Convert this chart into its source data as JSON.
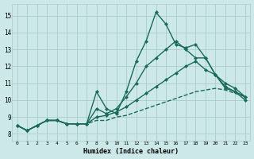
{
  "background_color": "#cce8e8",
  "grid_color": "#aacccc",
  "line_color": "#1a6b5a",
  "xlabel": "Humidex (Indice chaleur)",
  "xlim": [
    -0.5,
    23.5
  ],
  "ylim": [
    7.6,
    15.7
  ],
  "yticks": [
    8,
    9,
    10,
    11,
    12,
    13,
    14,
    15
  ],
  "xticks": [
    0,
    1,
    2,
    3,
    4,
    5,
    6,
    7,
    8,
    9,
    10,
    11,
    12,
    13,
    14,
    15,
    16,
    17,
    18,
    19,
    20,
    21,
    22,
    23
  ],
  "series": [
    {
      "x": [
        0,
        1,
        2,
        3,
        4,
        5,
        6,
        7,
        8,
        9,
        10,
        11,
        12,
        13,
        14,
        15,
        16,
        17,
        18,
        19,
        20,
        21,
        22,
        23
      ],
      "y": [
        8.5,
        8.2,
        8.5,
        8.8,
        8.8,
        8.6,
        8.6,
        8.6,
        8.8,
        8.8,
        9.0,
        9.1,
        9.3,
        9.5,
        9.7,
        9.9,
        10.1,
        10.3,
        10.5,
        10.6,
        10.7,
        10.6,
        10.4,
        10.2
      ],
      "marker": null,
      "linestyle": "--",
      "linewidth": 1.0
    },
    {
      "x": [
        0,
        1,
        2,
        3,
        4,
        5,
        6,
        7,
        8,
        9,
        10,
        11,
        12,
        13,
        14,
        15,
        16,
        17,
        18,
        19,
        20,
        21,
        22,
        23
      ],
      "y": [
        8.5,
        8.2,
        8.5,
        8.8,
        8.8,
        8.6,
        8.6,
        8.6,
        9.0,
        9.1,
        9.3,
        9.6,
        10.0,
        10.4,
        10.8,
        11.2,
        11.6,
        12.0,
        12.3,
        11.8,
        11.5,
        10.7,
        10.5,
        10.2
      ],
      "marker": "D",
      "markersize": 2.0,
      "linestyle": "-",
      "linewidth": 1.0
    },
    {
      "x": [
        0,
        1,
        2,
        3,
        4,
        5,
        6,
        7,
        8,
        9,
        10,
        11,
        12,
        13,
        14,
        15,
        16,
        17,
        18,
        19,
        20,
        21,
        22,
        23
      ],
      "y": [
        8.5,
        8.2,
        8.5,
        8.8,
        8.8,
        8.6,
        8.6,
        8.6,
        9.5,
        9.2,
        9.5,
        10.2,
        11.0,
        12.0,
        12.5,
        13.0,
        13.5,
        13.0,
        12.5,
        12.5,
        11.5,
        11.0,
        10.7,
        10.2
      ],
      "marker": "D",
      "markersize": 2.0,
      "linestyle": "-",
      "linewidth": 1.0
    },
    {
      "x": [
        0,
        1,
        2,
        3,
        4,
        5,
        6,
        7,
        8,
        9,
        10,
        11,
        12,
        13,
        14,
        15,
        16,
        17,
        18,
        19,
        20,
        21,
        22,
        23
      ],
      "y": [
        8.5,
        8.2,
        8.5,
        8.8,
        8.8,
        8.6,
        8.6,
        8.6,
        10.5,
        9.5,
        9.2,
        10.5,
        12.3,
        13.5,
        15.2,
        14.5,
        13.3,
        13.1,
        13.3,
        12.5,
        11.5,
        10.8,
        10.5,
        10.0
      ],
      "marker": "D",
      "markersize": 2.0,
      "linestyle": "-",
      "linewidth": 1.0
    }
  ]
}
